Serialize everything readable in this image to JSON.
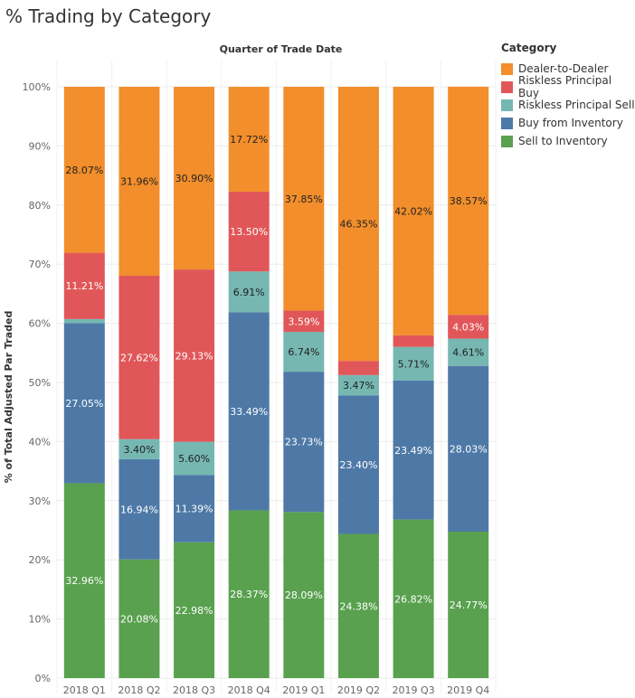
{
  "title": "% Trading by Category",
  "chart_data": {
    "type": "bar",
    "stacked": true,
    "title": "% Trading by Category",
    "xlabel": "Quarter of Trade Date",
    "ylabel": "% of Total Adjusted Par Traded",
    "ylim": [
      0,
      100
    ],
    "yticks": [
      "0%",
      "10%",
      "20%",
      "30%",
      "40%",
      "50%",
      "60%",
      "70%",
      "80%",
      "90%",
      "100%"
    ],
    "categories": [
      "2018 Q1",
      "2018 Q2",
      "2018 Q3",
      "2018 Q4",
      "2019 Q1",
      "2019 Q2",
      "2019 Q3",
      "2019 Q4"
    ],
    "legend_title": "Category",
    "legend_order": [
      4,
      3,
      2,
      1,
      0
    ],
    "series": [
      {
        "name": "Sell to Inventory",
        "color": "#59a14f",
        "values": [
          32.96,
          20.08,
          22.98,
          28.37,
          28.09,
          24.38,
          26.82,
          24.77
        ],
        "labels": [
          "32.96%",
          "20.08%",
          "22.98%",
          "28.37%",
          "28.09%",
          "24.38%",
          "26.82%",
          "24.77%"
        ],
        "label_color": "#ffffff"
      },
      {
        "name": "Buy from Inventory",
        "color": "#4e79a7",
        "values": [
          27.05,
          16.94,
          11.39,
          33.49,
          23.73,
          23.4,
          23.49,
          28.03
        ],
        "labels": [
          "27.05%",
          "16.94%",
          "11.39%",
          "33.49%",
          "23.73%",
          "23.40%",
          "23.49%",
          "28.03%"
        ],
        "label_color": "#ffffff"
      },
      {
        "name": "Riskless Principal Sell",
        "color": "#76b7b2",
        "values": [
          0.71,
          3.4,
          5.6,
          6.91,
          6.74,
          3.47,
          5.71,
          4.61
        ],
        "labels": [
          "",
          "3.40%",
          "5.60%",
          "6.91%",
          "6.74%",
          "3.47%",
          "5.71%",
          "4.61%"
        ],
        "label_color": "#222222"
      },
      {
        "name": "Riskless Principal Buy",
        "color": "#e15759",
        "values": [
          11.21,
          27.62,
          29.13,
          13.5,
          3.59,
          2.4,
          1.96,
          4.03
        ],
        "labels": [
          "11.21%",
          "27.62%",
          "29.13%",
          "13.50%",
          "3.59%",
          "",
          "",
          "4.03%"
        ],
        "label_color": "#ffffff"
      },
      {
        "name": "Dealer-to-Dealer",
        "color": "#f28e2b",
        "values": [
          28.07,
          31.96,
          30.9,
          17.72,
          37.85,
          46.35,
          42.02,
          38.57
        ],
        "labels": [
          "28.07%",
          "31.96%",
          "30.90%",
          "17.72%",
          "37.85%",
          "46.35%",
          "42.02%",
          "38.57%"
        ],
        "label_color": "#222222"
      }
    ]
  }
}
